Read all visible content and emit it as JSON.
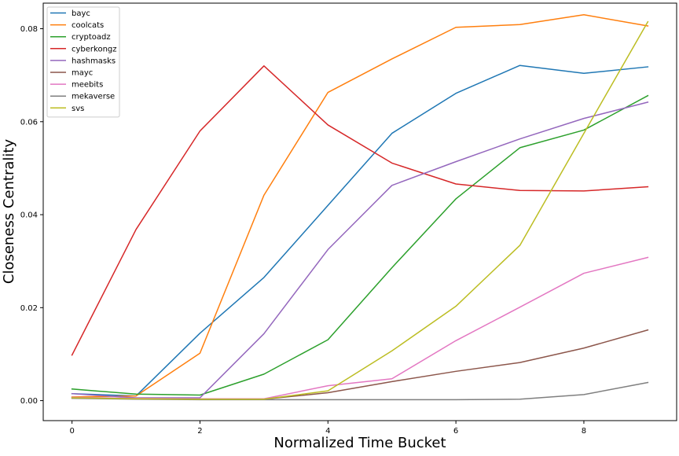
{
  "chart_data": {
    "type": "line",
    "title": "",
    "xlabel": "Normalized Time Bucket",
    "ylabel": "Closeness Centrality",
    "xlim": [
      -0.45,
      9.45
    ],
    "ylim": [
      -0.0043,
      0.0855
    ],
    "x_ticks": [
      0,
      2,
      4,
      6,
      8
    ],
    "y_ticks": [
      0.0,
      0.02,
      0.04,
      0.06,
      0.08
    ],
    "x_tick_labels": [
      "0",
      "2",
      "4",
      "6",
      "8"
    ],
    "y_tick_labels": [
      "0.00",
      "0.02",
      "0.04",
      "0.06",
      "0.08"
    ],
    "grid": false,
    "legend_position": "top-left",
    "x": [
      0,
      1,
      2,
      3,
      4,
      5,
      6,
      7,
      8,
      9
    ],
    "series": [
      {
        "name": "bayc",
        "color": "#1f77b4",
        "values": [
          0.0015,
          0.001,
          0.0145,
          0.0265,
          0.042,
          0.0575,
          0.0661,
          0.0721,
          0.0704,
          0.0718
        ]
      },
      {
        "name": "coolcats",
        "color": "#ff7f0e",
        "values": [
          0.0008,
          0.001,
          0.0102,
          0.0442,
          0.0663,
          0.0735,
          0.0803,
          0.0809,
          0.083,
          0.0806
        ]
      },
      {
        "name": "cryptoadz",
        "color": "#2ca02c",
        "values": [
          0.0025,
          0.0014,
          0.0012,
          0.0057,
          0.0131,
          0.0286,
          0.0434,
          0.0544,
          0.0582,
          0.0656
        ]
      },
      {
        "name": "cyberkongz",
        "color": "#d62728",
        "values": [
          0.0098,
          0.0368,
          0.058,
          0.072,
          0.0593,
          0.0511,
          0.0466,
          0.0452,
          0.0451,
          0.046
        ]
      },
      {
        "name": "hashmasks",
        "color": "#9467bd",
        "values": [
          0.0015,
          0.0006,
          0.0006,
          0.0144,
          0.0325,
          0.0463,
          0.0514,
          0.0563,
          0.0607,
          0.0642
        ]
      },
      {
        "name": "mayc",
        "color": "#8c564b",
        "values": [
          0.0006,
          0.0004,
          0.0003,
          0.0003,
          0.0017,
          0.0041,
          0.0063,
          0.0082,
          0.0113,
          0.0152
        ]
      },
      {
        "name": "meebits",
        "color": "#e377c2",
        "values": [
          0.0007,
          0.0005,
          0.0004,
          0.0004,
          0.0032,
          0.0047,
          0.0129,
          0.0201,
          0.0274,
          0.0308
        ]
      },
      {
        "name": "mekaverse",
        "color": "#7f7f7f",
        "values": [
          0.0005,
          0.0003,
          0.0002,
          0.0002,
          0.0002,
          0.0002,
          0.0002,
          0.0003,
          0.0013,
          0.0039
        ]
      },
      {
        "name": "svs",
        "color": "#bcbd22",
        "values": [
          0.0006,
          0.0004,
          0.0003,
          0.0003,
          0.0021,
          0.0107,
          0.0203,
          0.0334,
          0.0575,
          0.0815
        ]
      }
    ]
  }
}
